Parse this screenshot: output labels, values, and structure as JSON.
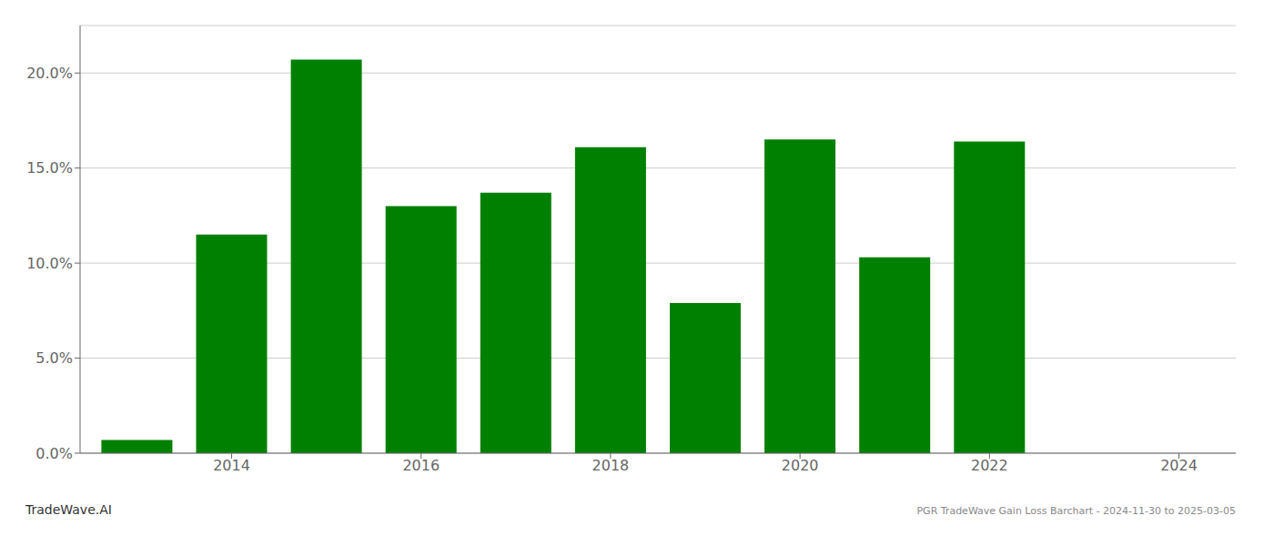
{
  "chart_data": {
    "type": "bar",
    "x": [
      2013,
      2014,
      2015,
      2016,
      2017,
      2018,
      2019,
      2020,
      2021,
      2022,
      2023
    ],
    "values": [
      0.007,
      0.115,
      0.207,
      0.13,
      0.137,
      0.161,
      0.079,
      0.165,
      0.103,
      0.164,
      0.0
    ],
    "color": "#008000",
    "xlim": [
      2012.4,
      2024.6
    ],
    "xticks": [
      2014,
      2016,
      2018,
      2020,
      2022,
      2024
    ],
    "ylim": [
      0,
      0.225
    ],
    "yticks": [
      {
        "value": 0.0,
        "label": "0.0%"
      },
      {
        "value": 0.05,
        "label": "5.0%"
      },
      {
        "value": 0.1,
        "label": "10.0%"
      },
      {
        "value": 0.15,
        "label": "15.0%"
      },
      {
        "value": 0.2,
        "label": "20.0%"
      }
    ],
    "grid": true,
    "annotations": [
      "TradeWave.AI",
      "PGR TradeWave Gain Loss Barchart - 2024-11-30 to 2025-03-05"
    ]
  }
}
